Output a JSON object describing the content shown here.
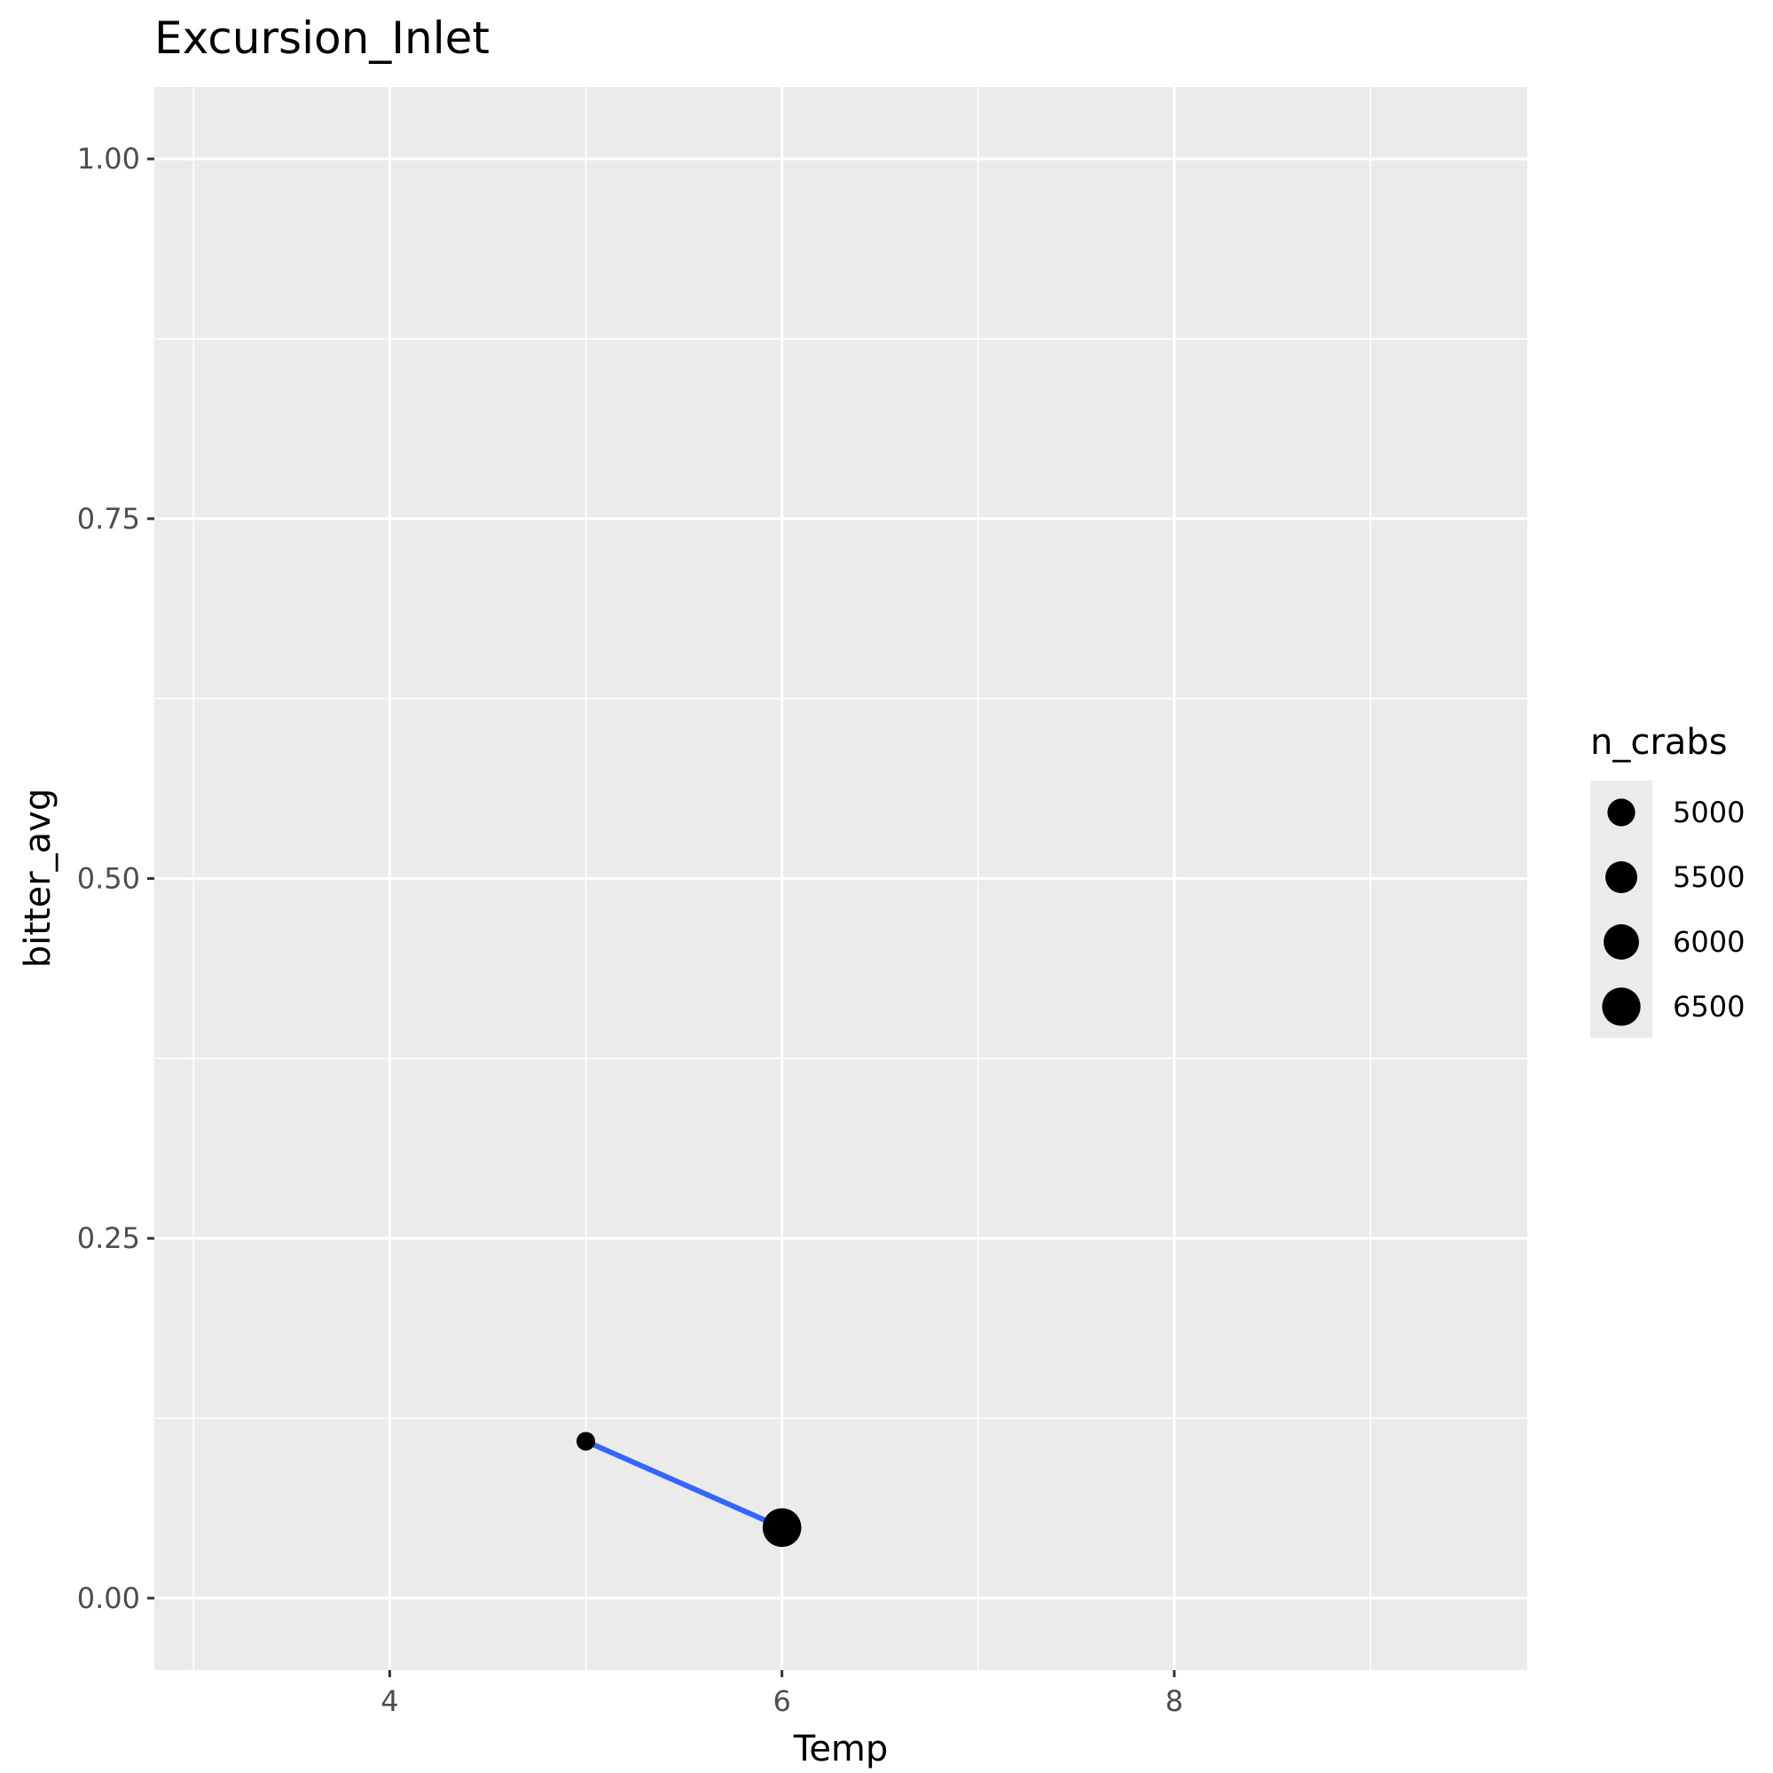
{
  "chart_data": {
    "type": "scatter",
    "title": "Excursion_Inlet",
    "xlabel": "Temp",
    "ylabel": "bitter_avg",
    "xlim": [
      2.8,
      9.8
    ],
    "ylim": [
      -0.05,
      1.05
    ],
    "x_ticks": [
      4,
      6,
      8
    ],
    "x_tick_labels": [
      "4",
      "6",
      "8"
    ],
    "x_minor": [
      3,
      5,
      7,
      9
    ],
    "y_ticks": [
      0.0,
      0.25,
      0.5,
      0.75,
      1.0
    ],
    "y_tick_labels": [
      "0.00",
      "0.25",
      "0.50",
      "0.75",
      "1.00"
    ],
    "y_minor": [
      0.125,
      0.375,
      0.625,
      0.875
    ],
    "grid": true,
    "points": [
      {
        "x": 5,
        "y": 0.109,
        "n_crabs": 4300
      },
      {
        "x": 6,
        "y": 0.049,
        "n_crabs": 6550
      }
    ],
    "trend_line": {
      "x": [
        5,
        6
      ],
      "y": [
        0.109,
        0.049
      ],
      "color": "#3366ff"
    },
    "legend": {
      "title": "n_crabs",
      "position": "right",
      "entries": [
        {
          "label": "5000",
          "value": 5000
        },
        {
          "label": "5500",
          "value": 5500
        },
        {
          "label": "6000",
          "value": 6000
        },
        {
          "label": "6500",
          "value": 6500
        }
      ]
    },
    "colors": {
      "panel": "#ebebeb",
      "grid": "#ffffff",
      "point": "#000000",
      "line": "#3366ff"
    }
  }
}
